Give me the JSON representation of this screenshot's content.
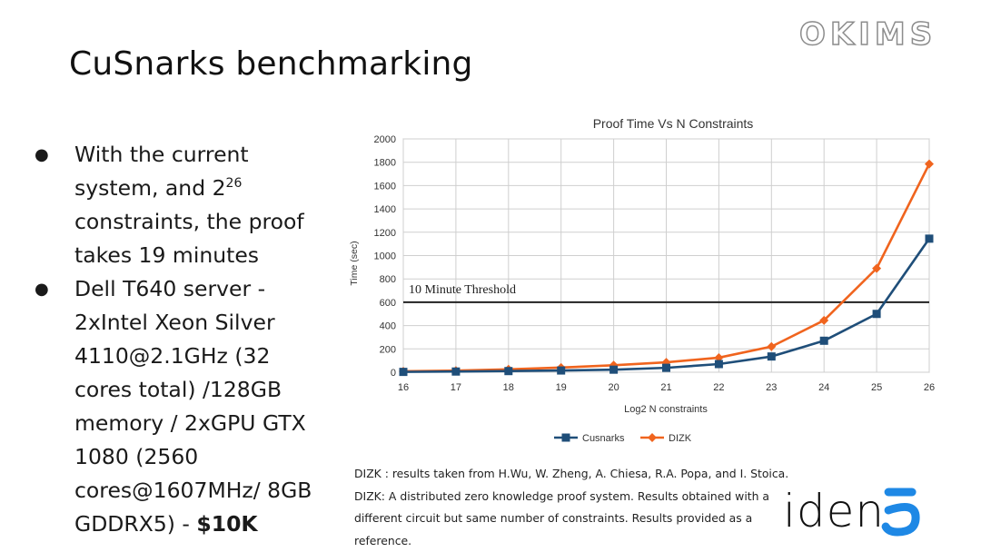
{
  "slide": {
    "title": "CuSnarks  benchmarking",
    "brand_top": "OKIMS",
    "brand_bottom": "iden3"
  },
  "bullets": [
    {
      "marker": "●",
      "text_before": "With the current system, and 2",
      "superscript": "26",
      "text_after": " constraints, the proof takes 19 minutes"
    },
    {
      "marker": "●",
      "text_before": "Dell T640 server - 2xIntel Xeon Silver 4110@2.1GHz  (32 cores total) /128GB memory / 2xGPU GTX 1080 (2560 cores@1607MHz/ 8GB GDDRX5) - ",
      "bold": "$10K"
    }
  ],
  "footnote": {
    "line1": "DIZK : results taken from H.Wu, W. Zheng, A. Chiesa, R.A. Popa, and I. Stoica.",
    "line2": "DIZK: A distributed zero knowledge proof system. Results obtained with a different circuit but same number of constraints. Results provided as a reference."
  },
  "chart_data": {
    "type": "line",
    "title": "Proof Time Vs N Constraints",
    "xlabel": "Log2 N constraints",
    "ylabel": "Time (sec)",
    "x": [
      16,
      17,
      18,
      19,
      20,
      21,
      22,
      23,
      24,
      25,
      26
    ],
    "xlim": [
      16,
      26
    ],
    "ylim": [
      0,
      2000
    ],
    "yticks": [
      0,
      200,
      400,
      600,
      800,
      1000,
      1200,
      1400,
      1600,
      1800,
      2000
    ],
    "grid": true,
    "legend_position": "bottom",
    "series": [
      {
        "name": "Cusnarks",
        "color": "#1f4e79",
        "marker": "square",
        "values": [
          3,
          6,
          10,
          15,
          22,
          38,
          70,
          135,
          270,
          500,
          1145
        ]
      },
      {
        "name": "DIZK",
        "color": "#f0641e",
        "marker": "diamond",
        "values": [
          8,
          14,
          25,
          40,
          60,
          85,
          125,
          220,
          445,
          890,
          1785
        ]
      }
    ],
    "threshold": {
      "label": "10 Minute Threshold",
      "value": 600,
      "color": "#222222"
    }
  }
}
